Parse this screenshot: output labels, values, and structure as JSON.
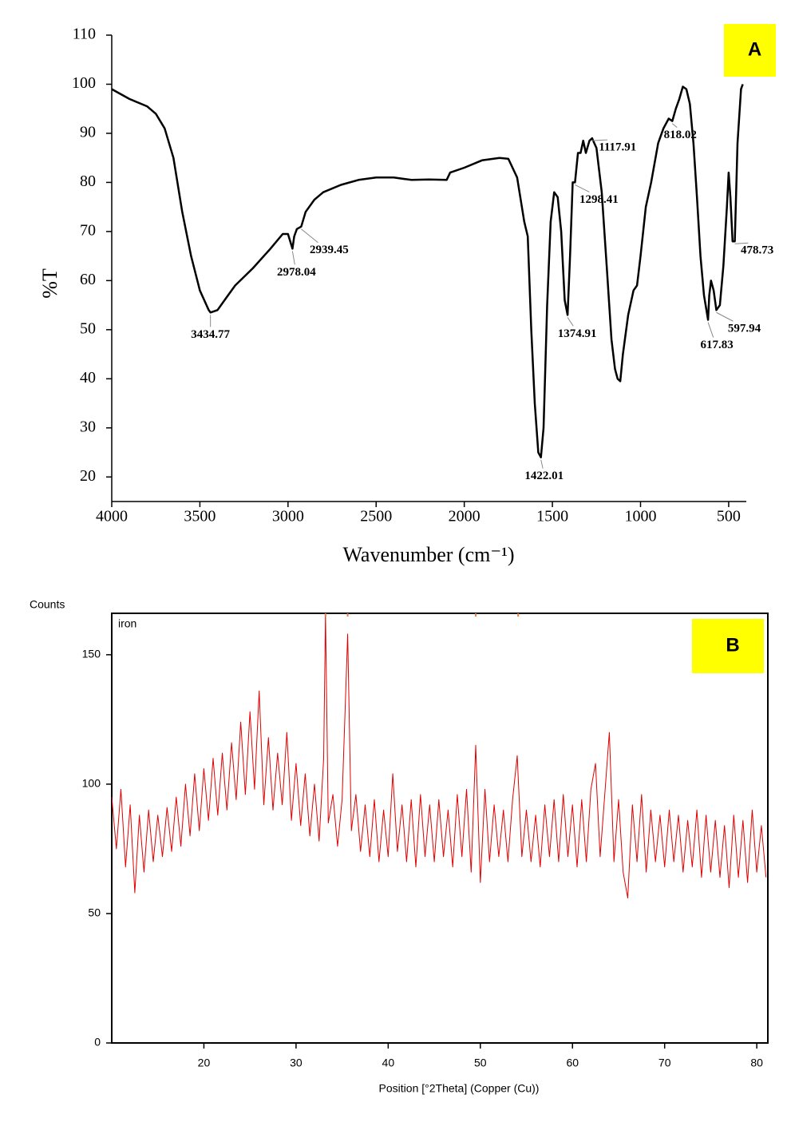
{
  "chart_data": [
    {
      "type": "line",
      "panel": "A",
      "ylabel": "%T",
      "xlabel": "Wavenumber (cm⁻¹)",
      "color": "#000000",
      "xlim": [
        4000,
        400
      ],
      "ylim": [
        15,
        110
      ],
      "xticks": [
        4000,
        3500,
        3000,
        2500,
        2000,
        1500,
        1000,
        500
      ],
      "yticks": [
        20,
        30,
        40,
        50,
        60,
        70,
        80,
        90,
        100,
        110
      ],
      "x": [
        4000,
        3900,
        3800,
        3750,
        3700,
        3650,
        3600,
        3550,
        3500,
        3450,
        3440,
        3400,
        3350,
        3300,
        3200,
        3100,
        3030,
        3000,
        2975,
        2965,
        2950,
        2925,
        2900,
        2850,
        2800,
        2700,
        2600,
        2500,
        2400,
        2300,
        2200,
        2100,
        2080,
        2000,
        1900,
        1800,
        1750,
        1700,
        1660,
        1640,
        1620,
        1600,
        1580,
        1565,
        1550,
        1530,
        1510,
        1490,
        1470,
        1450,
        1430,
        1414,
        1400,
        1385,
        1372,
        1355,
        1340,
        1325,
        1310,
        1290,
        1275,
        1250,
        1220,
        1190,
        1165,
        1145,
        1130,
        1115,
        1100,
        1070,
        1040,
        1020,
        1000,
        970,
        940,
        900,
        870,
        840,
        820,
        800,
        780,
        760,
        740,
        720,
        700,
        680,
        660,
        640,
        617,
        610,
        600,
        585,
        570,
        550,
        530,
        510,
        500,
        490,
        478,
        465,
        450,
        430,
        420
      ],
      "values": [
        99,
        97,
        95.5,
        94,
        91,
        85,
        74,
        65,
        58,
        54,
        53.5,
        54,
        56.5,
        59,
        62.5,
        66.5,
        69.5,
        69.5,
        66.5,
        69,
        70.5,
        71,
        74,
        76.5,
        78,
        79.5,
        80.5,
        81,
        81,
        80.5,
        80.6,
        80.5,
        82,
        83,
        84.5,
        85,
        84.8,
        81,
        72,
        69,
        50,
        35,
        25,
        24,
        30,
        55,
        72,
        78,
        77,
        70,
        56,
        53,
        65,
        80,
        80,
        86,
        86,
        88.5,
        86,
        88.5,
        89,
        87,
        78,
        62,
        48,
        42,
        40,
        39.5,
        45,
        53,
        58,
        59,
        65,
        75,
        80,
        88,
        91,
        93,
        92.5,
        95,
        97,
        99.5,
        99,
        96,
        88,
        77,
        65,
        57,
        52,
        57,
        60,
        58,
        54,
        55,
        63,
        75,
        82,
        77,
        68,
        68,
        88,
        99,
        100
      ],
      "annotations": [
        {
          "text": "3434.77",
          "x": 3440,
          "y": 53.5
        },
        {
          "text": "2978.04",
          "x": 2975,
          "y": 66.5
        },
        {
          "text": "2939.45",
          "x": 2925,
          "y": 71
        },
        {
          "text": "1422.01",
          "x": 1565,
          "y": 24
        },
        {
          "text": "1374.91",
          "x": 1414,
          "y": 53
        },
        {
          "text": "1298.41",
          "x": 1372,
          "y": 80
        },
        {
          "text": "1117.91",
          "x": 1275,
          "y": 89
        },
        {
          "text": "818.02",
          "x": 820,
          "y": 92.5
        },
        {
          "text": "617.83",
          "x": 617,
          "y": 52
        },
        {
          "text": "597.94",
          "x": 570,
          "y": 54
        },
        {
          "text": "478.73",
          "x": 465,
          "y": 68
        }
      ]
    },
    {
      "type": "line",
      "panel": "B",
      "ylabel": "Counts",
      "xlabel": "Position [°2Theta] (Copper (Cu))",
      "series_name": "iron",
      "color": "#e00000",
      "xlim": [
        10,
        81.2
      ],
      "ylim": [
        0,
        166
      ],
      "xticks": [
        20,
        30,
        40,
        50,
        60,
        70,
        80
      ],
      "yticks": [
        0,
        50,
        100,
        150
      ],
      "reference_peaks": [
        33.2,
        35.6,
        49.5,
        54.1
      ],
      "x": [
        10,
        10.5,
        11,
        11.5,
        12,
        12.5,
        13,
        13.5,
        14,
        14.5,
        15,
        15.5,
        16,
        16.5,
        17,
        17.5,
        18,
        18.5,
        19,
        19.5,
        20,
        20.5,
        21,
        21.5,
        22,
        22.5,
        23,
        23.5,
        24,
        24.5,
        25,
        25.5,
        26,
        26.5,
        27,
        27.5,
        28,
        28.5,
        29,
        29.5,
        30,
        30.5,
        31,
        31.5,
        32,
        32.5,
        33,
        33.2,
        33.5,
        34,
        34.5,
        35,
        35.6,
        36,
        36.5,
        37,
        37.5,
        38,
        38.5,
        39,
        39.5,
        40,
        40.5,
        41,
        41.5,
        42,
        42.5,
        43,
        43.5,
        44,
        44.5,
        45,
        45.5,
        46,
        46.5,
        47,
        47.5,
        48,
        48.5,
        49,
        49.5,
        50,
        50.5,
        51,
        51.5,
        52,
        52.5,
        53,
        53.5,
        54,
        54.5,
        55,
        55.5,
        56,
        56.5,
        57,
        57.5,
        58,
        58.5,
        59,
        59.5,
        60,
        60.5,
        61,
        61.5,
        62,
        62.5,
        63,
        63.5,
        64,
        64.5,
        65,
        65.5,
        66,
        66.5,
        67,
        67.5,
        68,
        68.5,
        69,
        69.5,
        70,
        70.5,
        71,
        71.5,
        72,
        72.5,
        73,
        73.5,
        74,
        74.5,
        75,
        75.5,
        76,
        76.5,
        77,
        77.5,
        78,
        78.5,
        79,
        79.5,
        80,
        80.5,
        81
      ],
      "values": [
        95,
        75,
        98,
        68,
        92,
        58,
        88,
        66,
        90,
        70,
        88,
        72,
        91,
        74,
        95,
        76,
        100,
        80,
        104,
        82,
        106,
        86,
        110,
        88,
        112,
        90,
        116,
        94,
        124,
        96,
        128,
        98,
        136,
        92,
        118,
        90,
        112,
        92,
        120,
        86,
        108,
        84,
        104,
        80,
        100,
        78,
        110,
        166,
        85,
        96,
        76,
        94,
        158,
        82,
        96,
        74,
        92,
        72,
        94,
        70,
        90,
        72,
        104,
        74,
        92,
        70,
        94,
        68,
        96,
        72,
        92,
        70,
        94,
        72,
        90,
        68,
        96,
        72,
        98,
        66,
        115,
        62,
        98,
        70,
        92,
        72,
        90,
        70,
        94,
        111,
        72,
        90,
        70,
        88,
        68,
        92,
        72,
        94,
        70,
        96,
        72,
        92,
        68,
        94,
        70,
        98,
        108,
        72,
        96,
        120,
        70,
        94,
        66,
        56,
        92,
        70,
        96,
        66,
        90,
        70,
        88,
        68,
        90,
        70,
        88,
        66,
        86,
        68,
        90,
        64,
        88,
        66,
        86,
        64,
        84,
        60,
        88,
        64,
        86,
        62,
        90,
        66,
        84,
        64
      ]
    }
  ]
}
